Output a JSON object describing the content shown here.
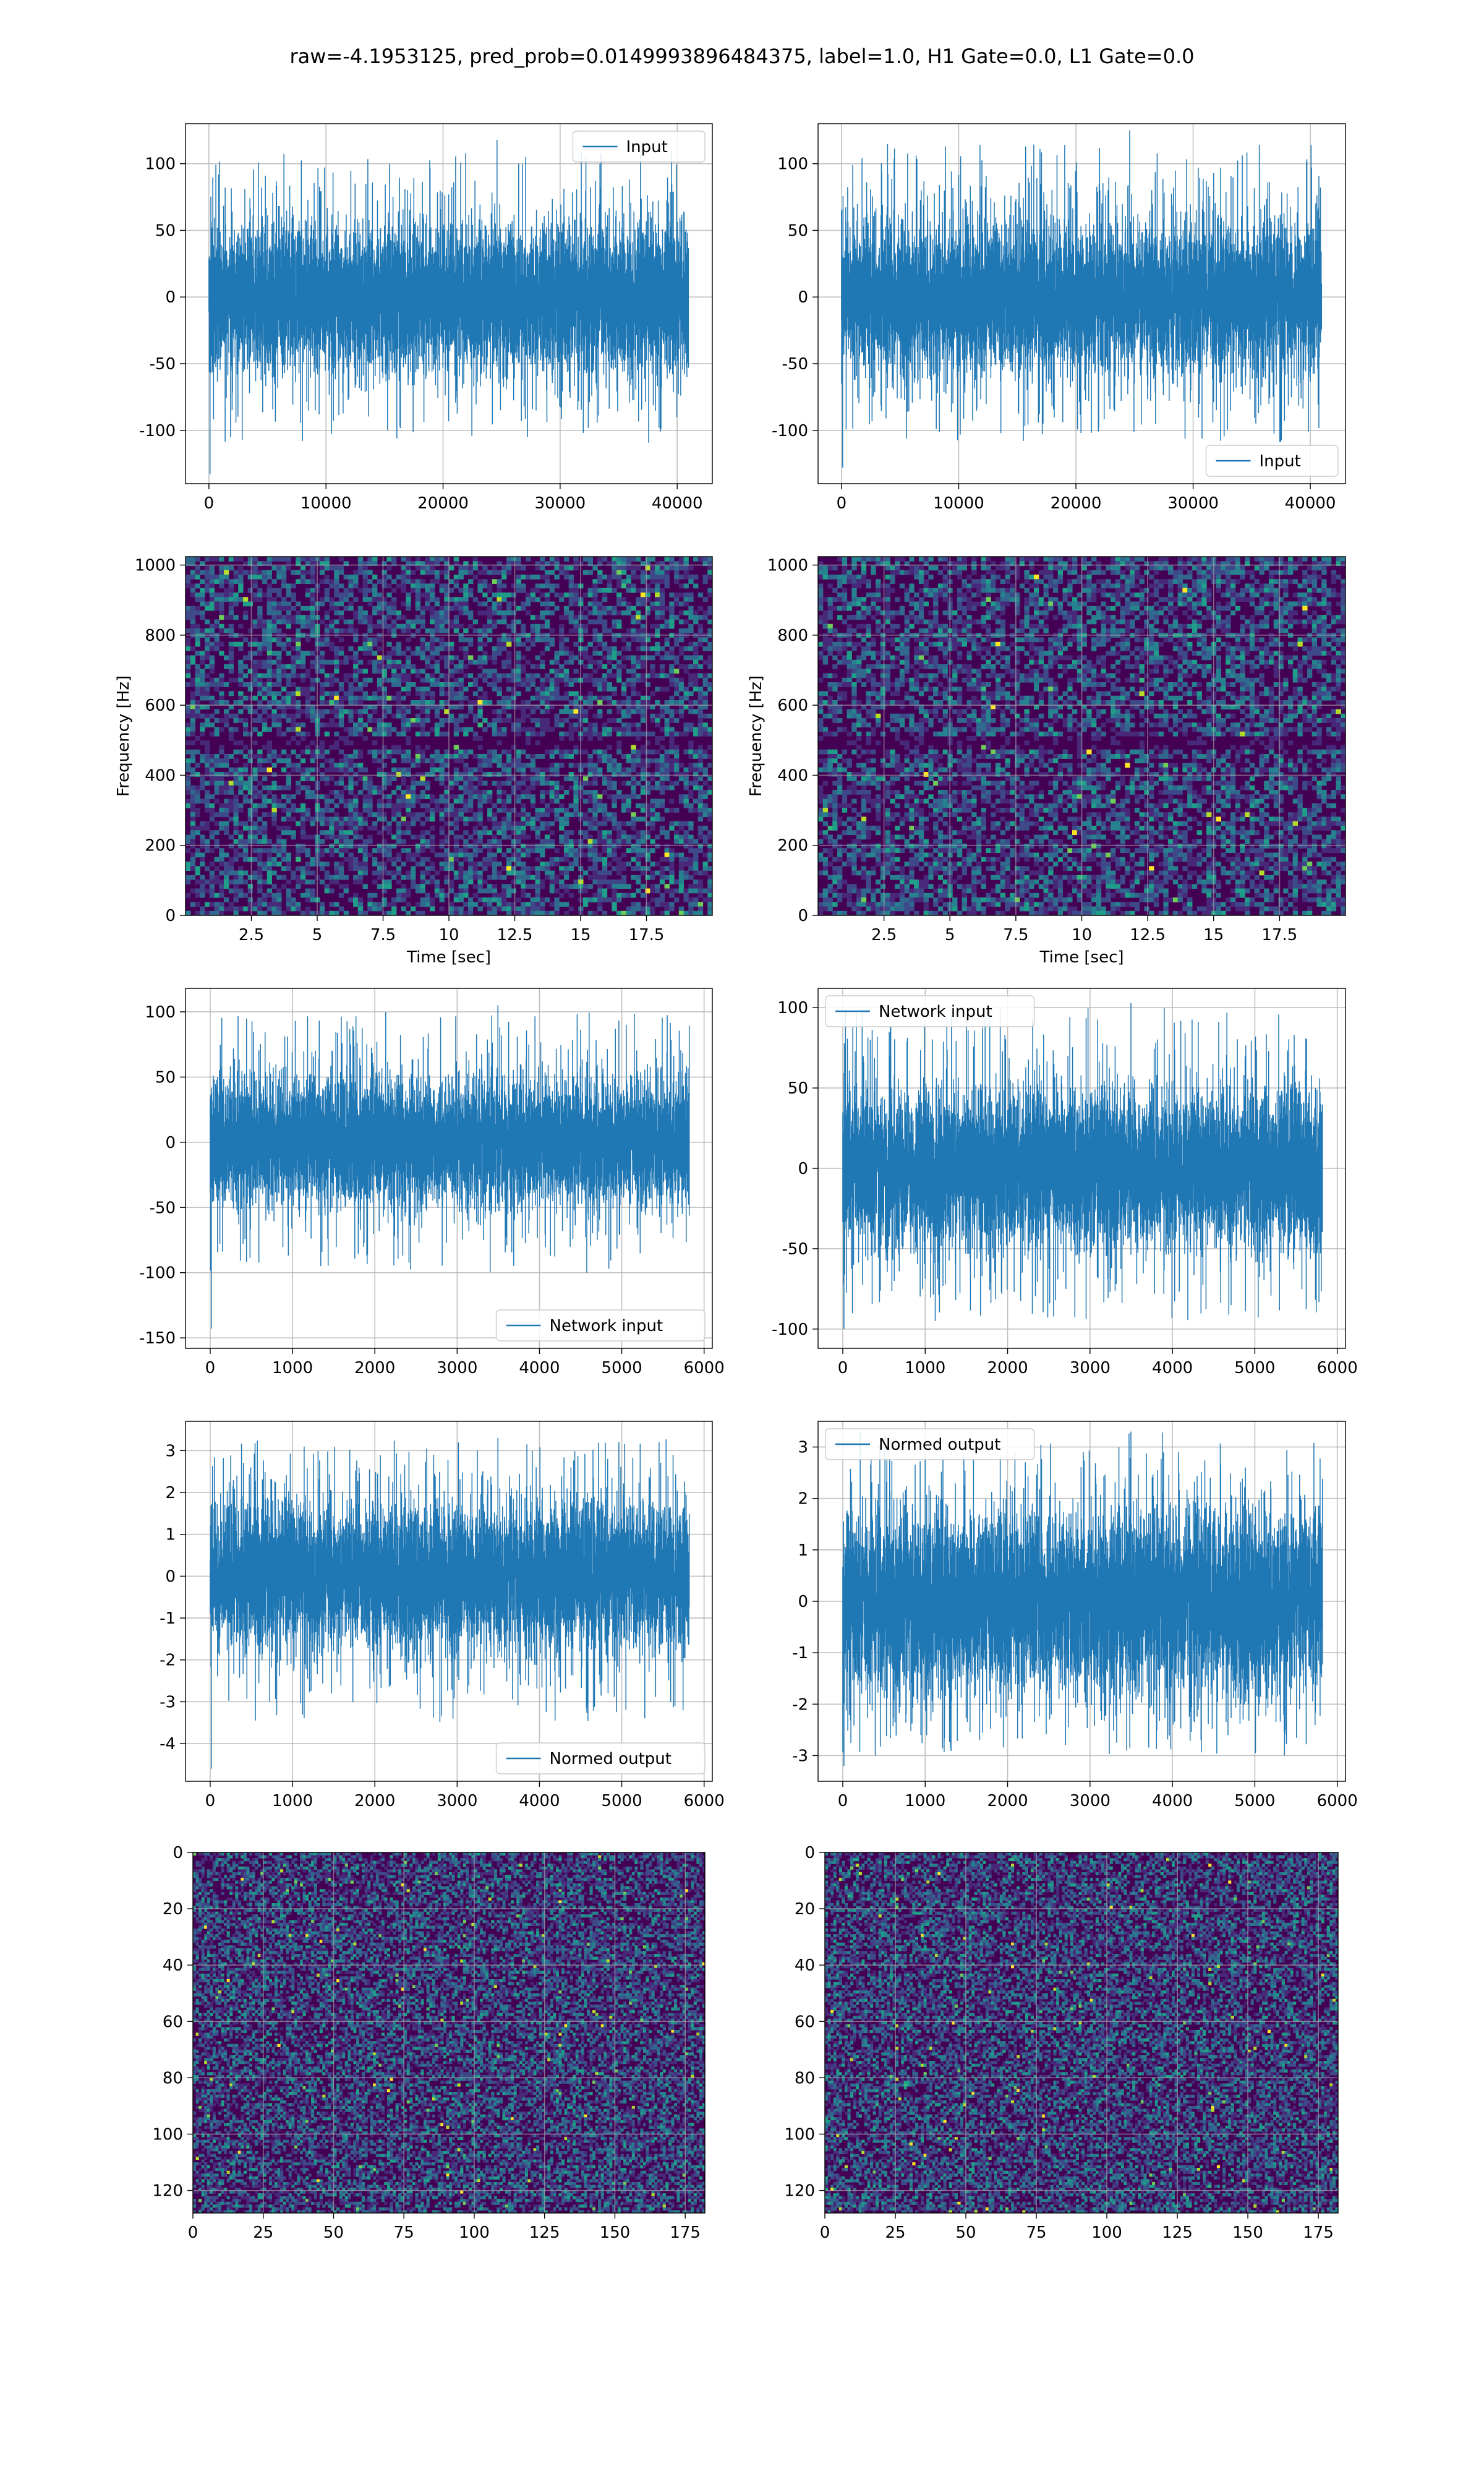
{
  "figure": {
    "suptitle": "raw=-4.1953125, pred_prob=0.0149993896484375, label=1.0, H1 Gate=0.0, L1 Gate=0.0"
  },
  "colors": {
    "series": "#1f77b4",
    "grid": "#b0b0b0",
    "viridis": [
      "#440154",
      "#482878",
      "#3e4989",
      "#31688e",
      "#26828e",
      "#1f9e89",
      "#35b779",
      "#6ece58",
      "#b5de2b",
      "#fde725"
    ]
  },
  "chart_data": [
    {
      "id": "ts-input-left",
      "type": "line",
      "legend": [
        "Input"
      ],
      "legend_loc": "upper right",
      "xlim": [
        -2000,
        43000
      ],
      "ylim": [
        -140,
        130
      ],
      "xticks": [
        0,
        10000,
        20000,
        30000,
        40000
      ],
      "yticks": [
        100,
        50,
        0,
        -50,
        -100
      ],
      "xlabel": "",
      "ylabel": "",
      "grid": true,
      "signal": {
        "n": 40960,
        "x_start": 0,
        "x_end": 40960,
        "envelope": [
          -110,
          110
        ],
        "typical_std": 28,
        "extreme_min": -133,
        "extreme_max": 118
      }
    },
    {
      "id": "ts-input-right",
      "type": "line",
      "legend": [
        "Input"
      ],
      "legend_loc": "lower right",
      "xlim": [
        -2000,
        43000
      ],
      "ylim": [
        -140,
        130
      ],
      "xticks": [
        0,
        10000,
        20000,
        30000,
        40000
      ],
      "yticks": [
        100,
        50,
        0,
        -50,
        -100
      ],
      "xlabel": "",
      "ylabel": "",
      "grid": true,
      "signal": {
        "n": 40960,
        "x_start": 0,
        "x_end": 40960,
        "envelope": [
          -110,
          115
        ],
        "typical_std": 28,
        "extreme_min": -128,
        "extreme_max": 125
      }
    },
    {
      "id": "spec-left",
      "type": "heatmap",
      "xlim": [
        0,
        20
      ],
      "ylim": [
        0,
        1024
      ],
      "xticks": [
        2.5,
        5.0,
        7.5,
        10.0,
        12.5,
        15.0,
        17.5
      ],
      "yticks": [
        0,
        200,
        400,
        600,
        800,
        1000
      ],
      "xlabel": "Time [sec]",
      "ylabel": "Frequency [Hz]",
      "grid": true,
      "colormap": "viridis",
      "dark_band_hz": 500
    },
    {
      "id": "spec-right",
      "type": "heatmap",
      "xlim": [
        0,
        20
      ],
      "ylim": [
        0,
        1024
      ],
      "xticks": [
        2.5,
        5.0,
        7.5,
        10.0,
        12.5,
        15.0,
        17.5
      ],
      "yticks": [
        0,
        200,
        400,
        600,
        800,
        1000
      ],
      "xlabel": "Time [sec]",
      "ylabel": "Frequency [Hz]",
      "grid": true,
      "colormap": "viridis",
      "dark_band_hz": 500
    },
    {
      "id": "ts-network-left",
      "type": "line",
      "legend": [
        "Network input"
      ],
      "legend_loc": "lower right",
      "xlim": [
        -300,
        6100
      ],
      "ylim": [
        -158,
        118
      ],
      "xticks": [
        0,
        1000,
        2000,
        3000,
        4000,
        5000,
        6000
      ],
      "yticks": [
        100,
        50,
        0,
        -50,
        -100,
        -150
      ],
      "xlabel": "",
      "ylabel": "",
      "grid": true,
      "signal": {
        "n": 5820,
        "x_start": 0,
        "x_end": 5820,
        "envelope": [
          -100,
          100
        ],
        "typical_std": 24,
        "extreme_min": -143,
        "extreme_max": 105
      }
    },
    {
      "id": "ts-network-right",
      "type": "line",
      "legend": [
        "Network input"
      ],
      "legend_loc": "upper left",
      "xlim": [
        -300,
        6100
      ],
      "ylim": [
        -112,
        112
      ],
      "xticks": [
        0,
        1000,
        2000,
        3000,
        4000,
        5000,
        6000
      ],
      "yticks": [
        100,
        50,
        0,
        -50,
        -100
      ],
      "xlabel": "",
      "ylabel": "",
      "grid": true,
      "signal": {
        "n": 5820,
        "x_start": 0,
        "x_end": 5820,
        "envelope": [
          -95,
          100
        ],
        "typical_std": 24,
        "extreme_min": -100,
        "extreme_max": 103
      }
    },
    {
      "id": "ts-normed-left",
      "type": "line",
      "legend": [
        "Normed output"
      ],
      "legend_loc": "lower right",
      "xlim": [
        -300,
        6100
      ],
      "ylim": [
        -4.9,
        3.7
      ],
      "xticks": [
        0,
        1000,
        2000,
        3000,
        4000,
        5000,
        6000
      ],
      "yticks": [
        3,
        2,
        1,
        0,
        -1,
        -2,
        -3,
        -4
      ],
      "xlabel": "",
      "ylabel": "",
      "grid": true,
      "signal": {
        "n": 5820,
        "x_start": 0,
        "x_end": 5820,
        "envelope": [
          -3.5,
          3.3
        ],
        "typical_std": 0.85,
        "extreme_min": -4.6,
        "extreme_max": 3.3
      }
    },
    {
      "id": "ts-normed-right",
      "type": "line",
      "legend": [
        "Normed output"
      ],
      "legend_loc": "upper left",
      "xlim": [
        -300,
        6100
      ],
      "ylim": [
        -3.5,
        3.5
      ],
      "xticks": [
        0,
        1000,
        2000,
        3000,
        4000,
        5000,
        6000
      ],
      "yticks": [
        3,
        2,
        1,
        0,
        -1,
        -2,
        -3
      ],
      "xlabel": "",
      "ylabel": "",
      "grid": true,
      "signal": {
        "n": 5820,
        "x_start": 0,
        "x_end": 5820,
        "envelope": [
          -3.0,
          3.3
        ],
        "typical_std": 0.85,
        "extreme_min": -3.2,
        "extreme_max": 3.3
      }
    },
    {
      "id": "img-left",
      "type": "heatmap",
      "xlim": [
        0,
        182
      ],
      "ylim": [
        128,
        0
      ],
      "xticks": [
        0,
        25,
        50,
        75,
        100,
        125,
        150,
        175
      ],
      "yticks": [
        0,
        20,
        40,
        60,
        80,
        100,
        120
      ],
      "xlabel": "",
      "ylabel": "",
      "grid": true,
      "colormap": "viridis",
      "image_shape": [
        128,
        182
      ]
    },
    {
      "id": "img-right",
      "type": "heatmap",
      "xlim": [
        0,
        182
      ],
      "ylim": [
        128,
        0
      ],
      "xticks": [
        0,
        25,
        50,
        75,
        100,
        125,
        150,
        175
      ],
      "yticks": [
        0,
        20,
        40,
        60,
        80,
        100,
        120
      ],
      "xlabel": "",
      "ylabel": "",
      "grid": true,
      "colormap": "viridis",
      "image_shape": [
        128,
        182
      ]
    }
  ]
}
